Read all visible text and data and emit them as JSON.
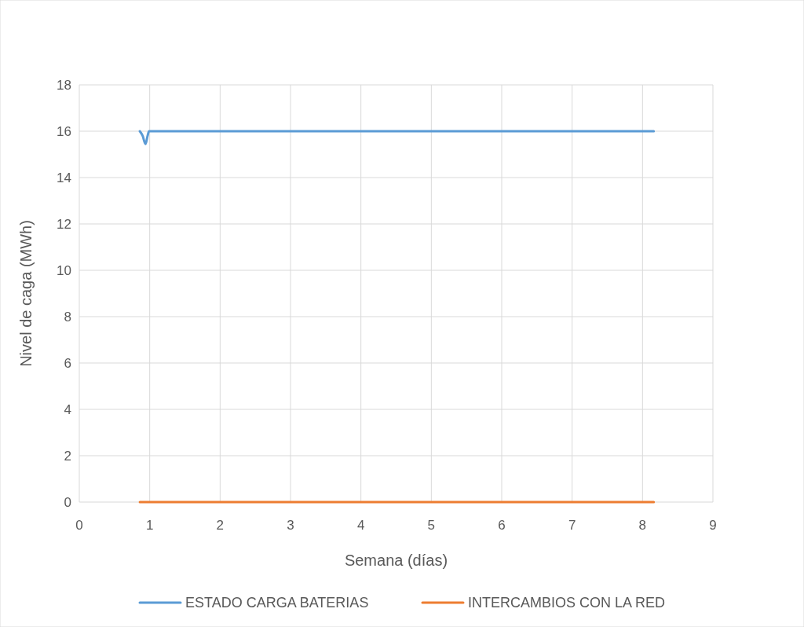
{
  "chart_data": {
    "type": "line",
    "xlabel": "Semana (días)",
    "ylabel": "Nivel de caga (MWh)",
    "xlim": [
      0,
      9
    ],
    "xticks": [
      0,
      1,
      2,
      3,
      4,
      5,
      6,
      7,
      8,
      9
    ],
    "ylim": [
      0,
      18
    ],
    "yticks": [
      0,
      2,
      4,
      6,
      8,
      10,
      12,
      14,
      16,
      18
    ],
    "grid": true,
    "legend": "bottom",
    "series": [
      {
        "name": "ESTADO CARGA BATERIAS",
        "color": "#5b9bd5",
        "x": [
          0.86,
          0.9,
          0.94,
          0.97,
          0.99,
          1.5,
          8.16
        ],
        "values": [
          16,
          15.8,
          15.45,
          15.8,
          16,
          16,
          16
        ]
      },
      {
        "name": "INTERCAMBIOS CON LA RED",
        "color": "#ed7d31",
        "x": [
          0.86,
          8.16
        ],
        "values": [
          0,
          0
        ]
      }
    ]
  }
}
